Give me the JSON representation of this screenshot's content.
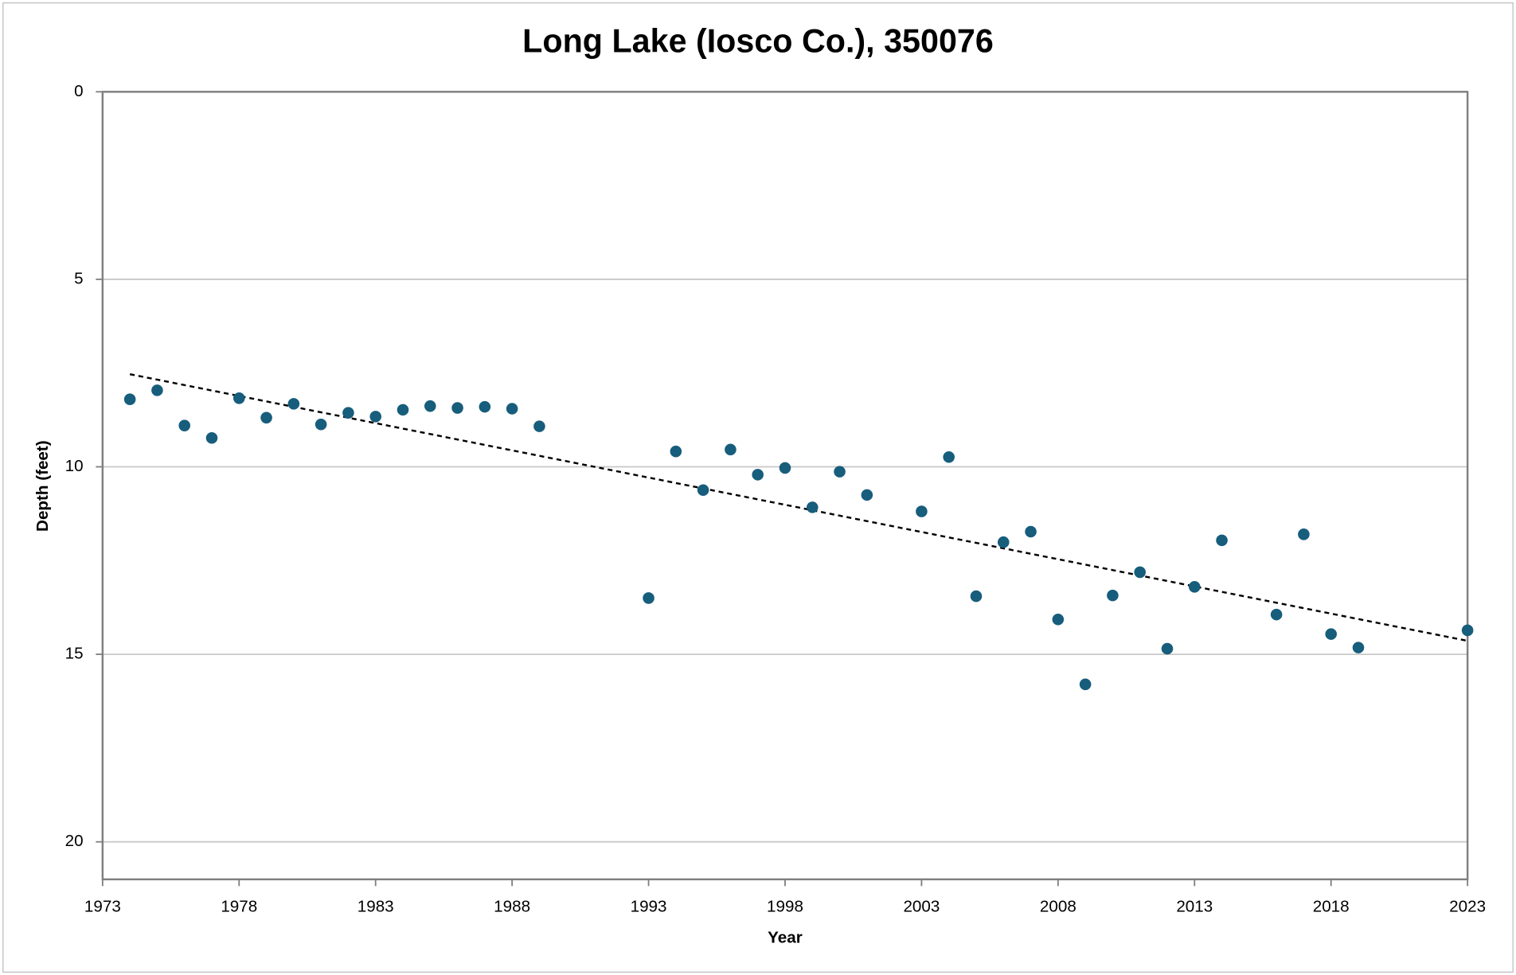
{
  "chart_data": {
    "type": "scatter",
    "title": "Long Lake (Iosco Co.), 350076",
    "x_label": "Year",
    "y_label": "Depth (feet)",
    "color": "#175d7c",
    "x": [
      1974,
      1975,
      1976,
      1977,
      1978,
      1979,
      1980,
      1981,
      1982,
      1983,
      1984,
      1985,
      1986,
      1987,
      1988,
      1989,
      1993,
      1994,
      1995,
      1996,
      1997,
      1998,
      1999,
      2000,
      2001,
      2003,
      2004,
      2005,
      2006,
      2007,
      2008,
      2009,
      2010,
      2011,
      2012,
      2013,
      2014,
      2016,
      2017,
      2018,
      2019,
      2023
    ],
    "values": [
      8.2,
      7.96,
      8.9,
      9.23,
      8.17,
      8.69,
      8.32,
      8.87,
      8.56,
      8.66,
      8.48,
      8.38,
      8.43,
      8.4,
      8.45,
      8.92,
      13.5,
      9.59,
      10.62,
      9.54,
      10.21,
      10.03,
      11.08,
      10.13,
      10.75,
      11.19,
      9.74,
      13.45,
      12.01,
      11.73,
      14.07,
      15.8,
      13.43,
      12.81,
      14.85,
      13.2,
      11.96,
      13.94,
      11.8,
      14.46,
      14.82,
      14.36
    ],
    "trendline": {
      "x": [
        1974,
        2023
      ],
      "values": [
        7.53,
        14.64
      ],
      "color": "#000000"
    },
    "xlim": [
      1973,
      2023
    ],
    "xticks": [
      1973,
      1978,
      1983,
      1988,
      1993,
      1998,
      2003,
      2008,
      2013,
      2018,
      2023
    ],
    "ylim": [
      0,
      21
    ],
    "yticks": [
      0,
      5,
      10,
      15,
      20
    ],
    "y_inverted": true,
    "grid": true
  }
}
